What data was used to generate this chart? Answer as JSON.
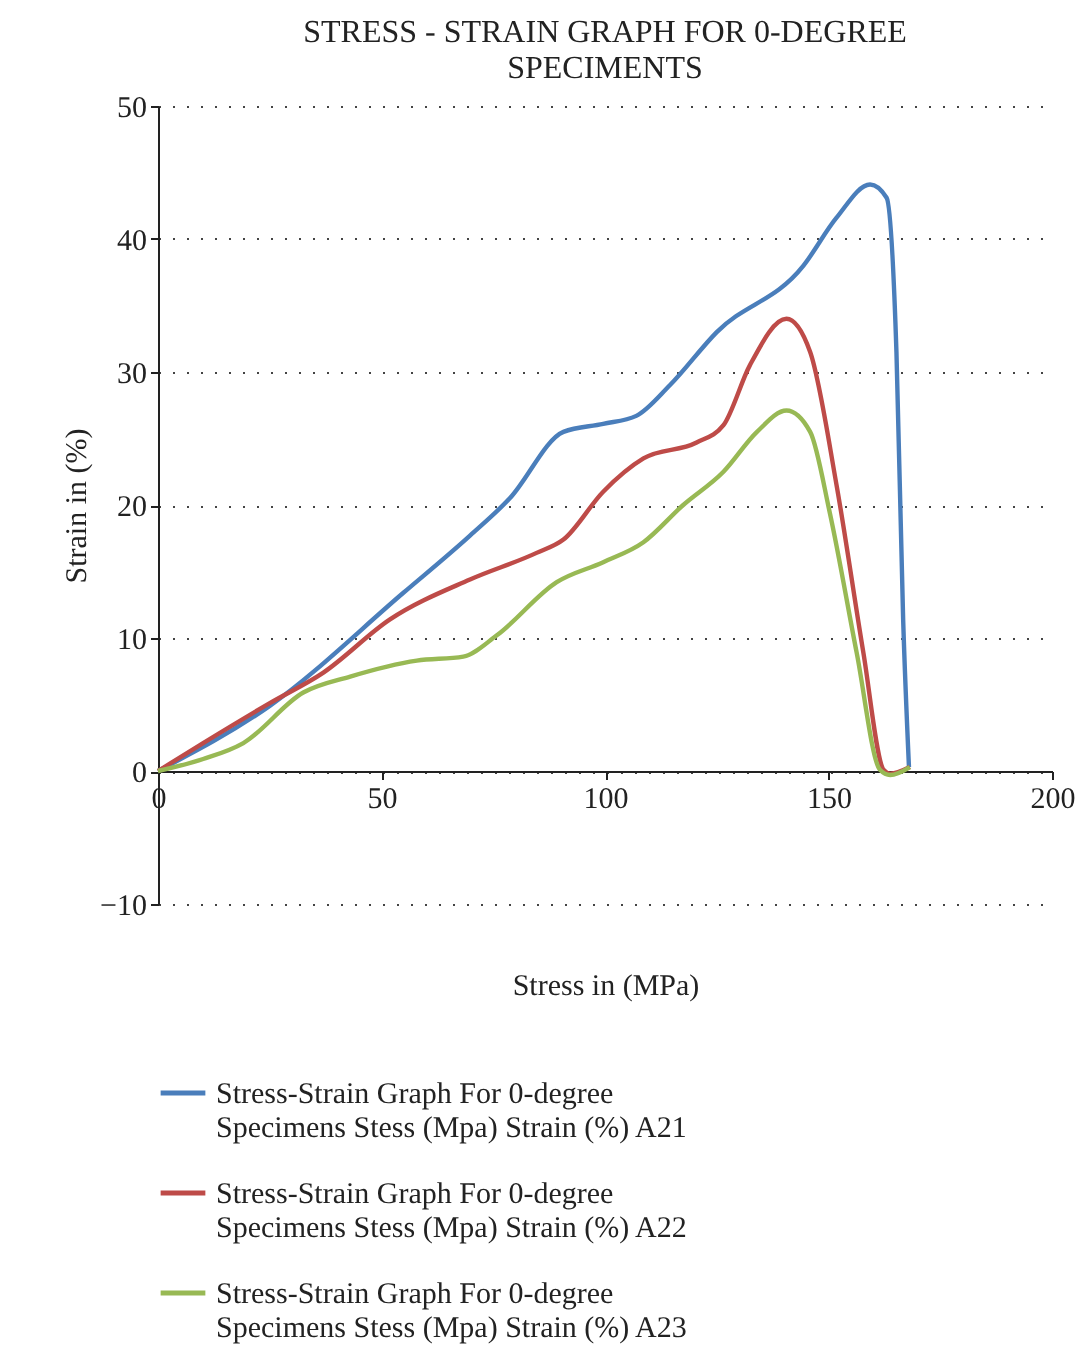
{
  "chart_data": {
    "type": "line",
    "title": "STRESS - STRAIN GRAPH FOR 0-DEGREE SPECIMENTS",
    "xlabel": "Stress in (MPa)",
    "ylabel": "Strain in (%)",
    "xlim": [
      0,
      200
    ],
    "xticks": [
      0,
      50,
      100,
      150,
      200
    ],
    "ylim": [
      -10,
      50
    ],
    "yticks": [
      -10,
      0,
      10,
      20,
      30,
      40,
      50
    ],
    "grid": "y",
    "legend": "bottom",
    "line_style": "solid",
    "marker": "none",
    "series": [
      {
        "name": "Stress-Strain Graph For 0-degree Specimens Stess (Mpa) Strain (%) A21",
        "color": "#4a7ebb",
        "x": [
          0,
          25,
          54.9,
          69.8,
          78.7,
          90.7,
          99.6,
          107,
          114.5,
          125,
          144.4,
          151.8,
          159.3,
          163,
          165.2,
          166.7,
          168
        ],
        "values": [
          0,
          4.9,
          13.4,
          17.7,
          20.5,
          25.5,
          26.1,
          26.7,
          29,
          33,
          38,
          41.6,
          44.1,
          43.1,
          31.5,
          11.4,
          0.3
        ]
      },
      {
        "name": "Stress-Strain Graph For 0-degree Specimens Stess (Mpa) Strain (%) A22",
        "color": "#be4b48",
        "x": [
          0,
          10.1,
          25,
          37,
          51.9,
          69.8,
          84.7,
          90.7,
          99.6,
          108.6,
          120.5,
          126.5,
          132.4,
          140.6,
          145.9,
          151.8,
          157.8,
          162.3,
          163.8,
          168.2
        ],
        "values": [
          0,
          2.1,
          5.1,
          7.4,
          11.4,
          14.4,
          16.4,
          17.4,
          21,
          23.5,
          24.7,
          26,
          30.5,
          34,
          31.5,
          21.5,
          8.9,
          0.1,
          -0.2,
          0.3
        ]
      },
      {
        "name": "Stress-Strain Graph For 0-degree Specimens Stess (Mpa) Strain (%) A23",
        "color": "#98b954",
        "x": [
          0,
          10.1,
          19.1,
          32.5,
          43,
          57.9,
          68.3,
          75.8,
          89.2,
          99.6,
          108.6,
          117.5,
          126.5,
          134,
          140.6,
          145.9,
          150.3,
          156.3,
          161.5,
          163.8,
          168.2
        ],
        "values": [
          0,
          0.9,
          2.1,
          5.9,
          7.1,
          8.3,
          8.6,
          10.2,
          14.2,
          15.7,
          17.2,
          20,
          22.5,
          25.5,
          27.1,
          25.5,
          19.4,
          8.9,
          0.1,
          -0.3,
          0.3
        ]
      }
    ]
  }
}
